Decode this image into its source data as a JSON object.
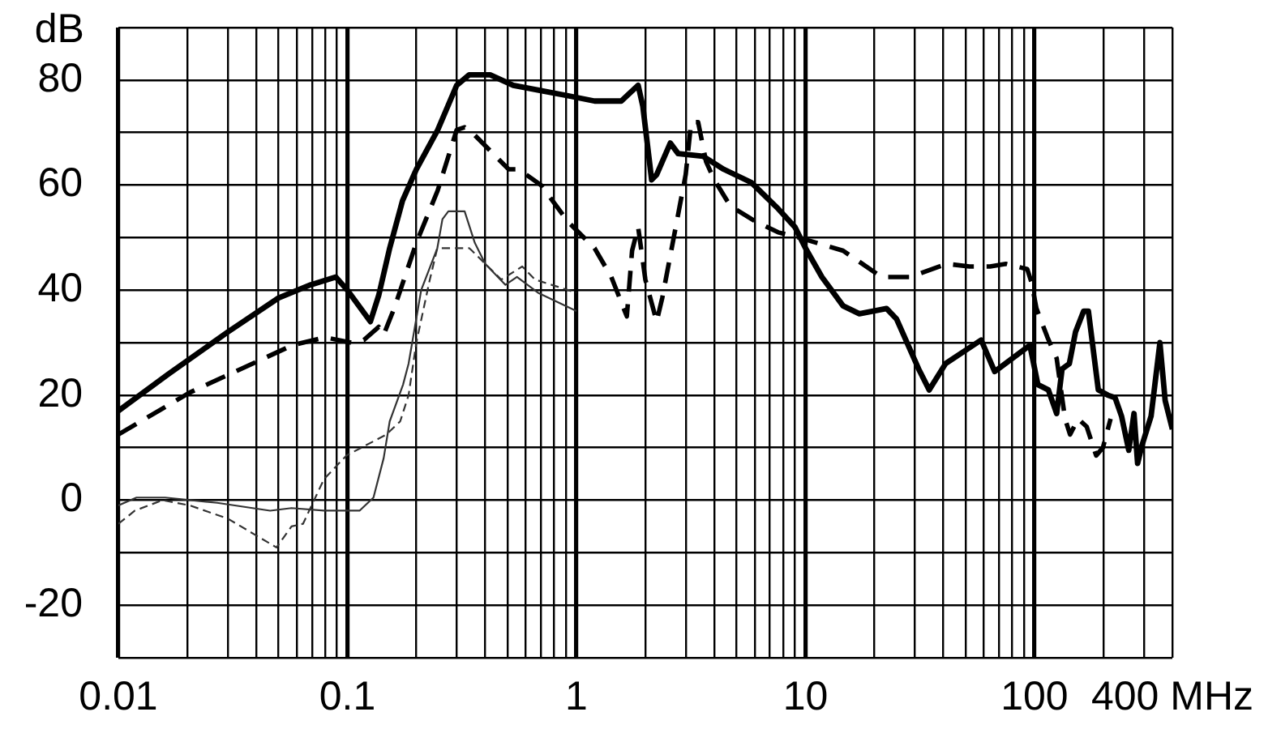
{
  "chart_data": {
    "type": "line",
    "ylabel": "dB",
    "log": "x",
    "grid": true,
    "xlim": [
      0.01,
      400
    ],
    "xticks": [
      0.01,
      {
        "value": 0.02,
        "label": null
      },
      {
        "value": 0.03,
        "label": null
      },
      {
        "value": 0.04,
        "label": null
      },
      {
        "value": 0.05,
        "label": null
      },
      {
        "value": 0.06,
        "label": null
      },
      {
        "value": 0.07,
        "label": null
      },
      {
        "value": 0.08,
        "label": null
      },
      {
        "value": 0.09,
        "label": null
      },
      0.1,
      {
        "value": 0.2,
        "label": null
      },
      {
        "value": 0.3,
        "label": null
      },
      {
        "value": 0.4,
        "label": null
      },
      {
        "value": 0.5,
        "label": null
      },
      {
        "value": 0.6,
        "label": null
      },
      {
        "value": 0.7,
        "label": null
      },
      {
        "value": 0.8,
        "label": null
      },
      {
        "value": 0.9,
        "label": null
      },
      1,
      {
        "value": 2,
        "label": null
      },
      {
        "value": 3,
        "label": null
      },
      {
        "value": 4,
        "label": null
      },
      {
        "value": 5,
        "label": null
      },
      {
        "value": 6,
        "label": null
      },
      {
        "value": 7,
        "label": null
      },
      {
        "value": 8,
        "label": null
      },
      {
        "value": 9,
        "label": null
      },
      10,
      {
        "value": 20,
        "label": null
      },
      {
        "value": 30,
        "label": null
      },
      {
        "value": 40,
        "label": null
      },
      {
        "value": 50,
        "label": null
      },
      {
        "value": 60,
        "label": null
      },
      {
        "value": 70,
        "label": null
      },
      {
        "value": 80,
        "label": null
      },
      {
        "value": 90,
        "label": null
      },
      100,
      {
        "value": 200,
        "label": null
      },
      {
        "value": 300,
        "label": null
      },
      {
        "value": 400,
        "label": "400 MHz"
      }
    ],
    "ylim": [
      -30,
      90
    ],
    "yticks": [
      {
        "value": -30,
        "label": null
      },
      -20,
      {
        "value": -10,
        "label": null
      },
      0,
      {
        "value": 10,
        "label": null
      },
      20,
      {
        "value": 30,
        "label": null
      },
      40,
      {
        "value": 50,
        "label": null
      },
      60,
      {
        "value": 70,
        "label": null
      },
      80,
      {
        "value": 90,
        "label": null
      }
    ],
    "series": [
      {
        "color": "#000000",
        "line_style": "solid",
        "x": [
          0.01,
          0.0165,
          0.03,
          0.05,
          0.069,
          0.089,
          0.1,
          0.126,
          0.137,
          0.153,
          0.174,
          0.2,
          0.248,
          0.3,
          0.34,
          0.42,
          0.53,
          0.7,
          0.92,
          1.2,
          1.57,
          1.86,
          1.95,
          2.13,
          2.24,
          2.57,
          2.78,
          3.57,
          4.4,
          5.8,
          7.6,
          9,
          10,
          11.8,
          14.6,
          17.2,
          22.6,
          25,
          31.2,
          34.7,
          40.9,
          58.5,
          67,
          95.5,
          103.5,
          115,
          125,
          132,
          142,
          151,
          164,
          172,
          190,
          209,
          225,
          240,
          258,
          272,
          282,
          295,
          323,
          353,
          372,
          400
        ],
        "values": [
          17,
          24,
          32,
          38.5,
          41,
          42.5,
          40,
          34,
          39,
          48,
          57,
          63,
          70.5,
          79,
          81,
          81,
          79,
          78,
          77,
          76,
          76,
          79,
          75,
          61,
          62,
          68,
          66,
          65.5,
          63,
          60.5,
          55.5,
          52,
          48,
          42.5,
          37,
          35.5,
          36.5,
          34.5,
          25,
          21,
          26,
          30.5,
          24.5,
          29.5,
          22,
          21,
          16.5,
          25,
          26,
          32,
          36,
          36,
          21,
          20,
          19.5,
          16,
          9.5,
          16.5,
          7,
          10.5,
          16,
          30,
          19,
          13.5
        ]
      },
      {
        "color": "#000000",
        "line_style": "dashed",
        "x": [
          0.01,
          0.0205,
          0.0575,
          0.08,
          0.104,
          0.118,
          0.137,
          0.144,
          0.16,
          0.2,
          0.248,
          0.3,
          0.325,
          0.36,
          0.506,
          0.56,
          0.7,
          0.92,
          1.2,
          1.42,
          1.66,
          1.75,
          1.86,
          2,
          2.24,
          2.37,
          3,
          3.17,
          3.4,
          3.68,
          4,
          4.7,
          6.1,
          7.6,
          9.4,
          14.6,
          21.5,
          28.6,
          41.5,
          52,
          64,
          75,
          93,
          97,
          102,
          114,
          125,
          136,
          143,
          155,
          169,
          178,
          186,
          199,
          215
        ],
        "values": [
          12.5,
          20.5,
          29.5,
          31,
          30,
          30.5,
          33,
          31.5,
          36.5,
          49,
          59,
          70.5,
          71,
          69.5,
          63,
          63,
          60,
          53,
          48,
          42.5,
          35,
          47.5,
          52,
          42,
          34,
          38.5,
          62,
          72,
          72,
          64.5,
          61,
          56,
          53,
          51,
          50,
          47.5,
          42.5,
          42.5,
          45,
          44.5,
          44.5,
          45,
          44,
          41.5,
          36.5,
          31,
          27,
          15.5,
          12.5,
          15.5,
          14,
          11,
          8.5,
          10,
          15.5
        ]
      },
      {
        "color": "#333333",
        "line_style": "solid",
        "x": [
          0.01,
          0.012,
          0.016,
          0.027,
          0.046,
          0.057,
          0.079,
          0.113,
          0.13,
          0.144,
          0.153,
          0.175,
          0.185,
          0.21,
          0.247,
          0.26,
          0.276,
          0.325,
          0.36,
          0.4,
          0.49,
          0.55,
          0.68,
          1
        ],
        "values": [
          -1,
          0.5,
          0.5,
          -0.5,
          -2,
          -1.5,
          -2,
          -2,
          0.5,
          8,
          15,
          22,
          26,
          40,
          48,
          53.5,
          55,
          55,
          49,
          45,
          41,
          42.5,
          39.5,
          36
        ]
      },
      {
        "color": "#333333",
        "line_style": "dashed",
        "x": [
          0.01,
          0.0118,
          0.0156,
          0.0205,
          0.03,
          0.041,
          0.049,
          0.057,
          0.064,
          0.079,
          0.099,
          0.148,
          0.17,
          0.185,
          0.2,
          0.229,
          0.247,
          0.34,
          0.35,
          0.4,
          0.47,
          0.58,
          0.66,
          1
        ],
        "values": [
          -4.5,
          -2,
          0,
          -1,
          -3.5,
          -7,
          -9,
          -5,
          -4.5,
          4,
          8.5,
          12.5,
          15,
          20,
          30,
          42,
          48,
          48,
          47.5,
          45,
          42,
          44.5,
          42,
          39.5
        ]
      }
    ]
  }
}
